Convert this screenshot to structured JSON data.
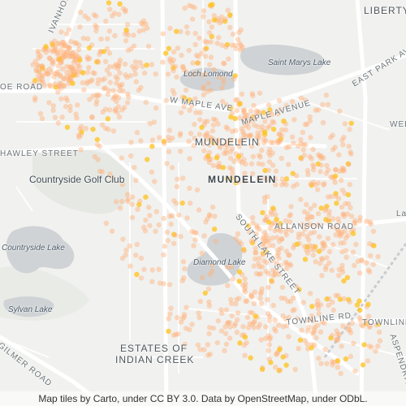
{
  "labels": {
    "ivanhoe_road": "IVANHOE ROAD",
    "oe_road": "OE ROAD",
    "hawley_street": "HAWLEY STREET",
    "gilmer_road": "GILMER ROAD",
    "libertyville": "LIBERTY",
    "east_park": "EAST PARK AVE",
    "saint_marys_lake": "Saint Marys Lake",
    "loch_lomond": "Loch Lomond",
    "w_maple_ave": "W MAPLE AVE",
    "maple_avenue": "MAPLE AVENUE",
    "mundelein_small": "MUNDELEIN",
    "mundelein_big": "MUNDELEIN",
    "countryside_golf_club": "Countryside Golf Club",
    "countryside_lake": "Countryside Lake",
    "sylvan_lake": "Sylvan Lake",
    "diamond_lake": "Diamond Lake",
    "allanson_road": "ALLANSON ROAD",
    "south_lake_street": "SOUTH LAKE STREET",
    "townline_rd_1": "TOWNLINE RD",
    "townline_rd_2": "TOWNLINE",
    "estates_line1": "ESTATES OF",
    "estates_line2": "INDIAN CREEK",
    "web": "WEB",
    "lam": "La",
    "asp": "ASPENDRIVE"
  },
  "colors": {
    "land": "#f1f1ef",
    "water": "#cfd3d6",
    "park": "#e6e8e3",
    "road_major": "#ffffff",
    "point_fill": "#ffb27a",
    "point_hot": "#ffc21a"
  },
  "attribution": "Map tiles by Carto, under CC BY 3.0. Data by OpenStreetMap, under ODbL."
}
